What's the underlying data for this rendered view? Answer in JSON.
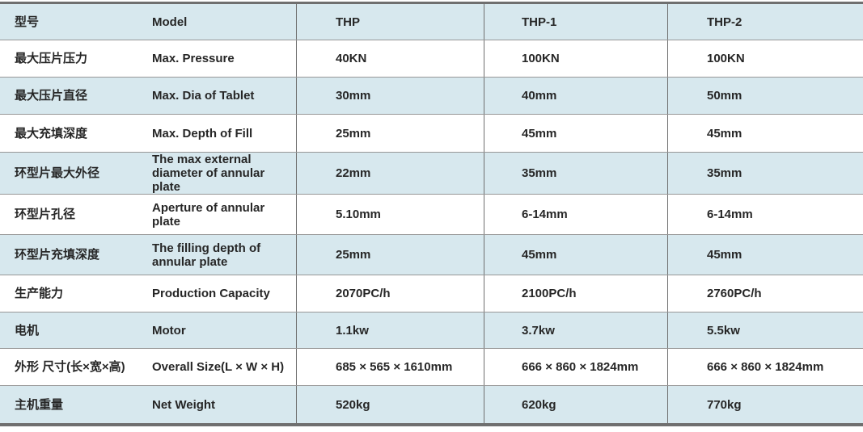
{
  "table": {
    "header": {
      "label_zh": "型号",
      "label_en": "Model",
      "columns": [
        "THP",
        "THP-1",
        "THP-2"
      ]
    },
    "rows": [
      {
        "zh": "最大压片压力",
        "en": "Max. Pressure",
        "thp": "40KN",
        "thp1": "100KN",
        "thp2": "100KN"
      },
      {
        "zh": "最大压片直径",
        "en": "Max. Dia of Tablet",
        "thp": "30mm",
        "thp1": "40mm",
        "thp2": "50mm"
      },
      {
        "zh": "最大充填深度",
        "en": "Max. Depth of Fill",
        "thp": "25mm",
        "thp1": "45mm",
        "thp2": "45mm"
      },
      {
        "zh": "环型片最大外径",
        "en": "The max external diameter of annular plate",
        "thp": "22mm",
        "thp1": "35mm",
        "thp2": "35mm"
      },
      {
        "zh": "环型片孔径",
        "en": "Aperture of annular plate",
        "thp": "5.10mm",
        "thp1": "6-14mm",
        "thp2": "6-14mm"
      },
      {
        "zh": "环型片充填深度",
        "en": "The filling depth of annular plate",
        "thp": "25mm",
        "thp1": "45mm",
        "thp2": "45mm"
      },
      {
        "zh": "生产能力",
        "en": "Production Capacity",
        "thp": "2070PC/h",
        "thp1": "2100PC/h",
        "thp2": "2760PC/h"
      },
      {
        "zh": "电机",
        "en": "Motor",
        "thp": "1.1kw",
        "thp1": "3.7kw",
        "thp2": "5.5kw"
      },
      {
        "zh": "外形 尺寸(长×宽×高)",
        "en": "Overall Size(L × W × H)",
        "thp": "685 × 565 × 1610mm",
        "thp1": "666 × 860 × 1824mm",
        "thp2": "666 × 860 × 1824mm"
      },
      {
        "zh": "主机重量",
        "en": "Net Weight",
        "thp": "520kg",
        "thp1": "620kg",
        "thp2": "770kg"
      }
    ],
    "colors": {
      "row_blue": "#d7e8ee",
      "row_white": "#ffffff",
      "text": "#262626",
      "row_divider": "#979797",
      "column_divider": "#6f6f6f",
      "outer_rule": "#6f6f6f"
    }
  }
}
